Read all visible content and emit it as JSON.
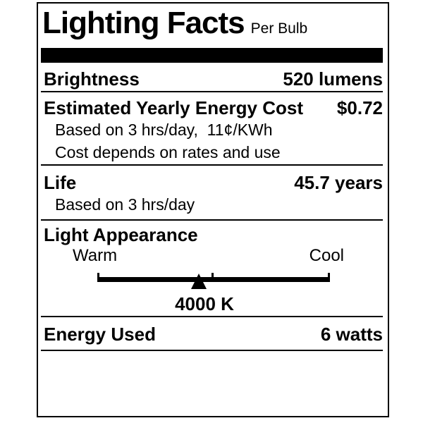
{
  "label": {
    "title": "Lighting Facts",
    "subtitle": "Per Bulb",
    "colors": {
      "ink": "#000000",
      "background": "#ffffff"
    },
    "rows": {
      "brightness": {
        "label": "Brightness",
        "value": "520 lumens"
      },
      "energy_cost": {
        "label": "Estimated Yearly Energy Cost",
        "value": "$0.72",
        "notes": [
          "Based on 3 hrs/day,  11¢/KWh",
          "Cost depends on rates and use"
        ]
      },
      "life": {
        "label": "Life",
        "value": "45.7 years",
        "notes": [
          "Based on 3 hrs/day"
        ]
      },
      "light_appearance": {
        "label": "Light Appearance",
        "scale": {
          "left_label": "Warm",
          "right_label": "Cool",
          "marker_value": "4000 K"
        }
      },
      "energy_used": {
        "label": "Energy Used",
        "value": "6 watts"
      }
    }
  }
}
